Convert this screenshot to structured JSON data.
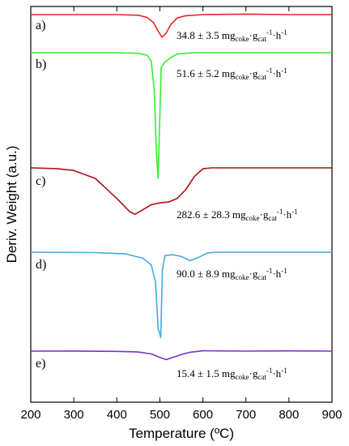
{
  "chart_data": {
    "type": "line",
    "title": "",
    "xlabel": "Temperature (ºC)",
    "ylabel": "Deriv. Weight (a.u.)",
    "xlim": [
      200,
      900
    ],
    "xticks": [
      "200",
      "300",
      "400",
      "500",
      "600",
      "700",
      "800",
      "900"
    ],
    "grid": false,
    "legend": "none",
    "series": [
      {
        "label": "a)",
        "color": "#ee2222",
        "rate": {
          "value": "34.8 ± 3.5 mg",
          "sub": "coke",
          "mid": "·g",
          "sub2": "cat",
          "sup": "-1",
          "mid2": "·h",
          "sup2": "-1"
        },
        "points": [
          [
            200,
            0.0
          ],
          [
            400,
            0.0
          ],
          [
            450,
            -0.03
          ],
          [
            470,
            -0.12
          ],
          [
            485,
            -0.35
          ],
          [
            495,
            -0.7
          ],
          [
            505,
            -1.0
          ],
          [
            515,
            -0.8
          ],
          [
            525,
            -0.45
          ],
          [
            540,
            -0.15
          ],
          [
            560,
            -0.05
          ],
          [
            600,
            0.0
          ],
          [
            700,
            0.02
          ],
          [
            800,
            0.0
          ],
          [
            900,
            0.0
          ]
        ]
      },
      {
        "label": "b)",
        "color": "#33ee33",
        "rate": {
          "value": "51.6 ± 5.2 mg",
          "sub": "coke",
          "mid": "·g",
          "sub2": "cat",
          "sup": "-1",
          "mid2": "·h",
          "sup2": "-1"
        },
        "points": [
          [
            200,
            0.0
          ],
          [
            400,
            0.0
          ],
          [
            450,
            -0.05
          ],
          [
            470,
            -0.2
          ],
          [
            480,
            -0.7
          ],
          [
            487,
            -3.0
          ],
          [
            492,
            -8.0
          ],
          [
            496,
            -10.0
          ],
          [
            500,
            -5.0
          ],
          [
            503,
            -1.2
          ],
          [
            510,
            -0.8
          ],
          [
            525,
            -0.4
          ],
          [
            540,
            -0.1
          ],
          [
            580,
            0.0
          ],
          [
            900,
            0.0
          ]
        ]
      },
      {
        "label": "c)",
        "color": "#aa1111",
        "rate": {
          "value": "282.6 ± 28.3 mg",
          "sub": "coke",
          "mid": "·g",
          "sub2": "cat",
          "sup": "-1",
          "mid2": "·h",
          "sup2": "-1"
        },
        "points": [
          [
            200,
            0.0
          ],
          [
            260,
            -0.08
          ],
          [
            300,
            -0.3
          ],
          [
            350,
            -1.2
          ],
          [
            400,
            -3.5
          ],
          [
            430,
            -5.0
          ],
          [
            442,
            -5.3
          ],
          [
            460,
            -4.8
          ],
          [
            480,
            -4.2
          ],
          [
            500,
            -4.0
          ],
          [
            520,
            -3.9
          ],
          [
            540,
            -3.5
          ],
          [
            560,
            -2.5
          ],
          [
            580,
            -1.0
          ],
          [
            600,
            -0.1
          ],
          [
            620,
            0.0
          ],
          [
            900,
            0.0
          ]
        ]
      },
      {
        "label": "d)",
        "color": "#44aadd",
        "rate": {
          "value": "90.0 ± 8.9 mg",
          "sub": "coke",
          "mid": "·g",
          "sub2": "cat",
          "sup": "-1",
          "mid2": "·h",
          "sup2": "-1"
        },
        "points": [
          [
            200,
            0.0
          ],
          [
            350,
            -0.05
          ],
          [
            420,
            -0.2
          ],
          [
            460,
            -0.7
          ],
          [
            480,
            -1.5
          ],
          [
            490,
            -3.5
          ],
          [
            496,
            -9.0
          ],
          [
            502,
            -10.0
          ],
          [
            506,
            -2.0
          ],
          [
            512,
            -0.4
          ],
          [
            530,
            -0.3
          ],
          [
            550,
            -0.5
          ],
          [
            570,
            -1.0
          ],
          [
            590,
            -0.6
          ],
          [
            610,
            -0.1
          ],
          [
            630,
            0.0
          ],
          [
            900,
            0.0
          ]
        ]
      },
      {
        "label": "e)",
        "color": "#7733cc",
        "rate": {
          "value": "15.4 ± 1.5 mg",
          "sub": "coke",
          "mid": "·g",
          "sub2": "cat",
          "sup": "-1",
          "mid2": "·h",
          "sup2": "-1"
        },
        "points": [
          [
            200,
            0.0
          ],
          [
            300,
            0.01
          ],
          [
            400,
            -0.02
          ],
          [
            450,
            -0.08
          ],
          [
            480,
            -0.25
          ],
          [
            500,
            -0.55
          ],
          [
            515,
            -0.75
          ],
          [
            530,
            -0.55
          ],
          [
            550,
            -0.3
          ],
          [
            570,
            -0.1
          ],
          [
            600,
            0.03
          ],
          [
            700,
            0.0
          ],
          [
            800,
            0.02
          ],
          [
            900,
            0.0
          ]
        ]
      }
    ]
  }
}
